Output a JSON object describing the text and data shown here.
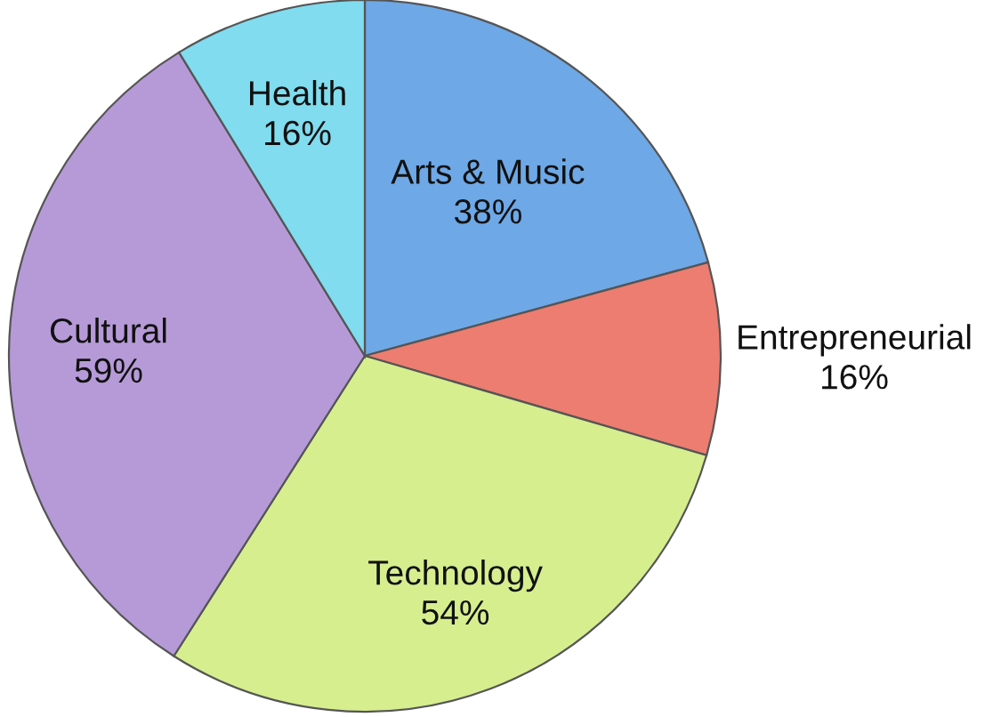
{
  "chart_data": {
    "type": "pie",
    "categories": [
      "Arts & Music",
      "Entrepreneurial",
      "Technology",
      "Cultural",
      "Health"
    ],
    "values": [
      38,
      16,
      54,
      59,
      16
    ],
    "value_labels": [
      "38%",
      "16%",
      "54%",
      "59%",
      "16%"
    ],
    "colors": [
      "#6ea8e6",
      "#ec7d70",
      "#d6ee8e",
      "#b69ad8",
      "#80dcee"
    ]
  }
}
